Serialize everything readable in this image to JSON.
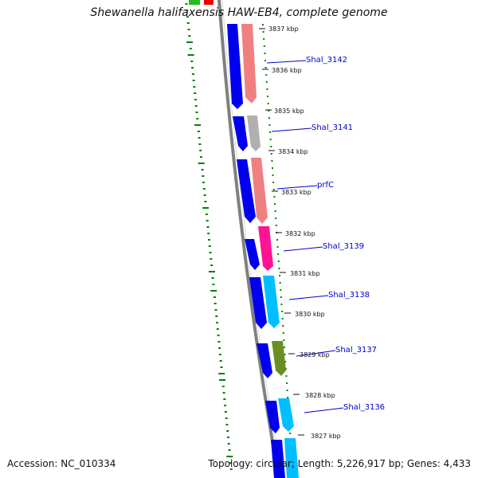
{
  "title": "Shewanella halifaxensis HAW-EB4, complete genome",
  "kbp_labels": [
    "3837 kbp",
    "3836 kbp",
    "3835 kbp",
    "3834 kbp",
    "3833 kbp",
    "3832 kbp",
    "3831 kbp",
    "3830 kbp",
    "3829 kbp",
    "3828 kbp",
    "3827 kbp"
  ],
  "genes": [
    {
      "name": "Shal_3142",
      "color": "#f08080"
    },
    {
      "name": "Shal_3141",
      "color": "#b0b0b0"
    },
    {
      "name": "prfC",
      "color": "#f08080"
    },
    {
      "name": "Shal_3139",
      "color": "#ff1493"
    },
    {
      "name": "Shal_3138",
      "color": "#00bfff"
    },
    {
      "name": "Shal_3137",
      "color": "#6b8e23"
    },
    {
      "name": "Shal_3136",
      "color": "#00bfff"
    }
  ],
  "colors": {
    "backbone": "#808080",
    "cds_strand": "#0000ee",
    "gc_plot": "#008000",
    "label_line": "#0000cc"
  },
  "footer": {
    "accession": "Accession: NC_010334",
    "summary": "Topology: circular; Length: 5,226,917 bp; Genes: 4,433"
  }
}
